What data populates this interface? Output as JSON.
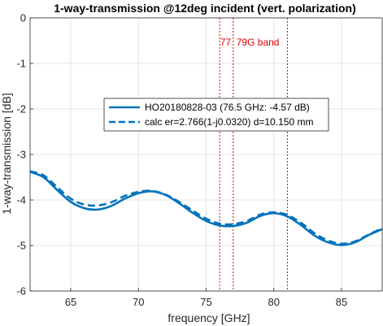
{
  "chart_data": {
    "type": "line",
    "title": "1-way-transmission @12deg incident (vert. polarization)",
    "xlabel": "frequency [GHz]",
    "ylabel": "1-way-transmission [dB]",
    "xlim": [
      62,
      88
    ],
    "ylim": [
      -6,
      0
    ],
    "xticks": [
      65,
      70,
      75,
      80,
      85
    ],
    "yticks": [
      0,
      -1,
      -2,
      -3,
      -4,
      -5,
      -6
    ],
    "grid": true,
    "legend_position": "center",
    "band_label": "77  79G band",
    "band_lines_x": [
      76,
      77,
      81
    ],
    "colors": {
      "series": "#0072bd",
      "band": "#e00000",
      "grid": "#dcdcdc"
    },
    "series": [
      {
        "name": "HO20180828-03 (76.5 GHz: -4.57 dB)",
        "style": "solid",
        "x": [
          62,
          63,
          64,
          65,
          66,
          67,
          68,
          69,
          70,
          71,
          72,
          73,
          74,
          75,
          76,
          77,
          78,
          79,
          80,
          81,
          82,
          83,
          84,
          85,
          86,
          87,
          88
        ],
        "y": [
          -3.38,
          -3.5,
          -3.78,
          -4.04,
          -4.18,
          -4.21,
          -4.13,
          -3.97,
          -3.85,
          -3.81,
          -3.89,
          -4.07,
          -4.28,
          -4.46,
          -4.56,
          -4.57,
          -4.5,
          -4.35,
          -4.29,
          -4.36,
          -4.55,
          -4.78,
          -4.93,
          -4.99,
          -4.93,
          -4.77,
          -4.64
        ]
      },
      {
        "name": "calc er=2.766(1-j0.0320) d=10.150 mm",
        "style": "dashed",
        "x": [
          62,
          63,
          64,
          65,
          66,
          67,
          68,
          69,
          70,
          71,
          72,
          73,
          74,
          75,
          76,
          77,
          78,
          79,
          80,
          81,
          82,
          83,
          84,
          85,
          86,
          87,
          88
        ],
        "y": [
          -3.37,
          -3.46,
          -3.72,
          -3.97,
          -4.1,
          -4.12,
          -4.05,
          -3.91,
          -3.82,
          -3.8,
          -3.88,
          -4.04,
          -4.23,
          -4.41,
          -4.52,
          -4.53,
          -4.46,
          -4.32,
          -4.27,
          -4.33,
          -4.5,
          -4.73,
          -4.89,
          -4.96,
          -4.91,
          -4.76,
          -4.62
        ]
      }
    ]
  }
}
